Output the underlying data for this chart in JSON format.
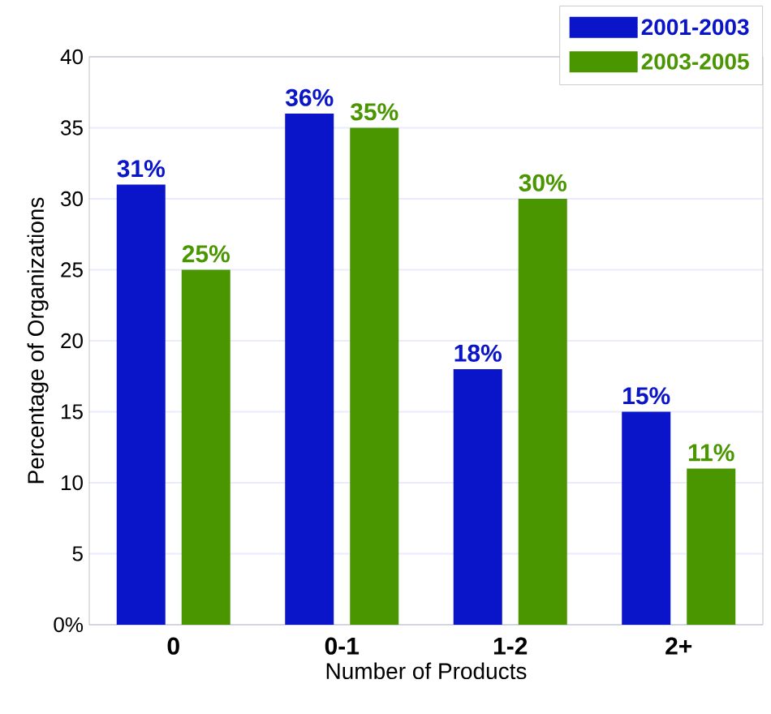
{
  "chart_data": {
    "type": "bar",
    "xlabel": "Number of Products",
    "ylabel": "Percentage of Organizations",
    "categories": [
      "0",
      "0-1",
      "1-2",
      "2+"
    ],
    "series": [
      {
        "name": "2001-2003",
        "color": "#0a14c8",
        "values": [
          31,
          36,
          18,
          15
        ],
        "value_labels": [
          "31%",
          "36%",
          "18%",
          "15%"
        ]
      },
      {
        "name": "2003-2005",
        "color": "#4a9600",
        "values": [
          25,
          35,
          30,
          11
        ],
        "value_labels": [
          "25%",
          "35%",
          "30%",
          "11%"
        ]
      }
    ],
    "ylim": [
      0,
      40
    ],
    "yticks": [
      {
        "value": 0,
        "label": "0%"
      },
      5,
      10,
      15,
      20,
      25,
      30,
      35,
      40
    ],
    "grid": "y",
    "legend": "top right"
  }
}
